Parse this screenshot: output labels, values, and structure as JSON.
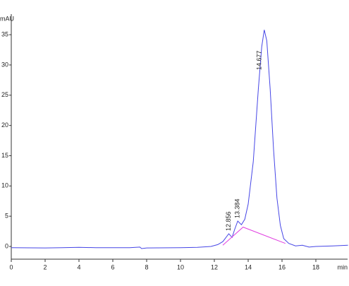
{
  "chart_data": {
    "type": "line",
    "y_label": "mAU",
    "x_label": "min",
    "xlim": [
      0,
      20
    ],
    "ylim": [
      -2.1,
      38.4
    ],
    "xticks": [
      0,
      2,
      4,
      6,
      8,
      10,
      12,
      14,
      16,
      18
    ],
    "yticks": [
      0,
      5,
      10,
      15,
      20,
      25,
      30,
      35
    ],
    "grid": false,
    "peak_labels": [
      12.856,
      13.384,
      14.677
    ],
    "series": [
      {
        "color": "#4646e6",
        "x": [
          0,
          2,
          3,
          4,
          5,
          6,
          7,
          7.6,
          7.7,
          8,
          10,
          11,
          11.8,
          12.2,
          12.5,
          12.856,
          13.05,
          13.2,
          13.384,
          13.6,
          13.8,
          14,
          14.3,
          14.6,
          14.8,
          14.95,
          15.1,
          15.3,
          15.5,
          15.7,
          15.9,
          16.1,
          16.4,
          16.8,
          17.2,
          17.6,
          18,
          19,
          19.9
        ],
        "values": [
          -0.2,
          -0.25,
          -0.2,
          -0.15,
          -0.2,
          -0.2,
          -0.2,
          -0.1,
          -0.35,
          -0.25,
          -0.2,
          -0.15,
          0,
          0.3,
          0.8,
          2.1,
          1.5,
          2.8,
          4.2,
          3.6,
          4.5,
          7,
          14,
          26,
          33,
          35.8,
          34,
          26,
          16,
          8,
          3.5,
          1.3,
          0.5,
          0.1,
          0.2,
          -0.1,
          0,
          0.1,
          0.2
        ]
      },
      {
        "color": "#e040e0",
        "x": [
          12.5,
          13.7,
          16.2
        ],
        "values": [
          0.2,
          3.2,
          0.5
        ]
      }
    ]
  }
}
